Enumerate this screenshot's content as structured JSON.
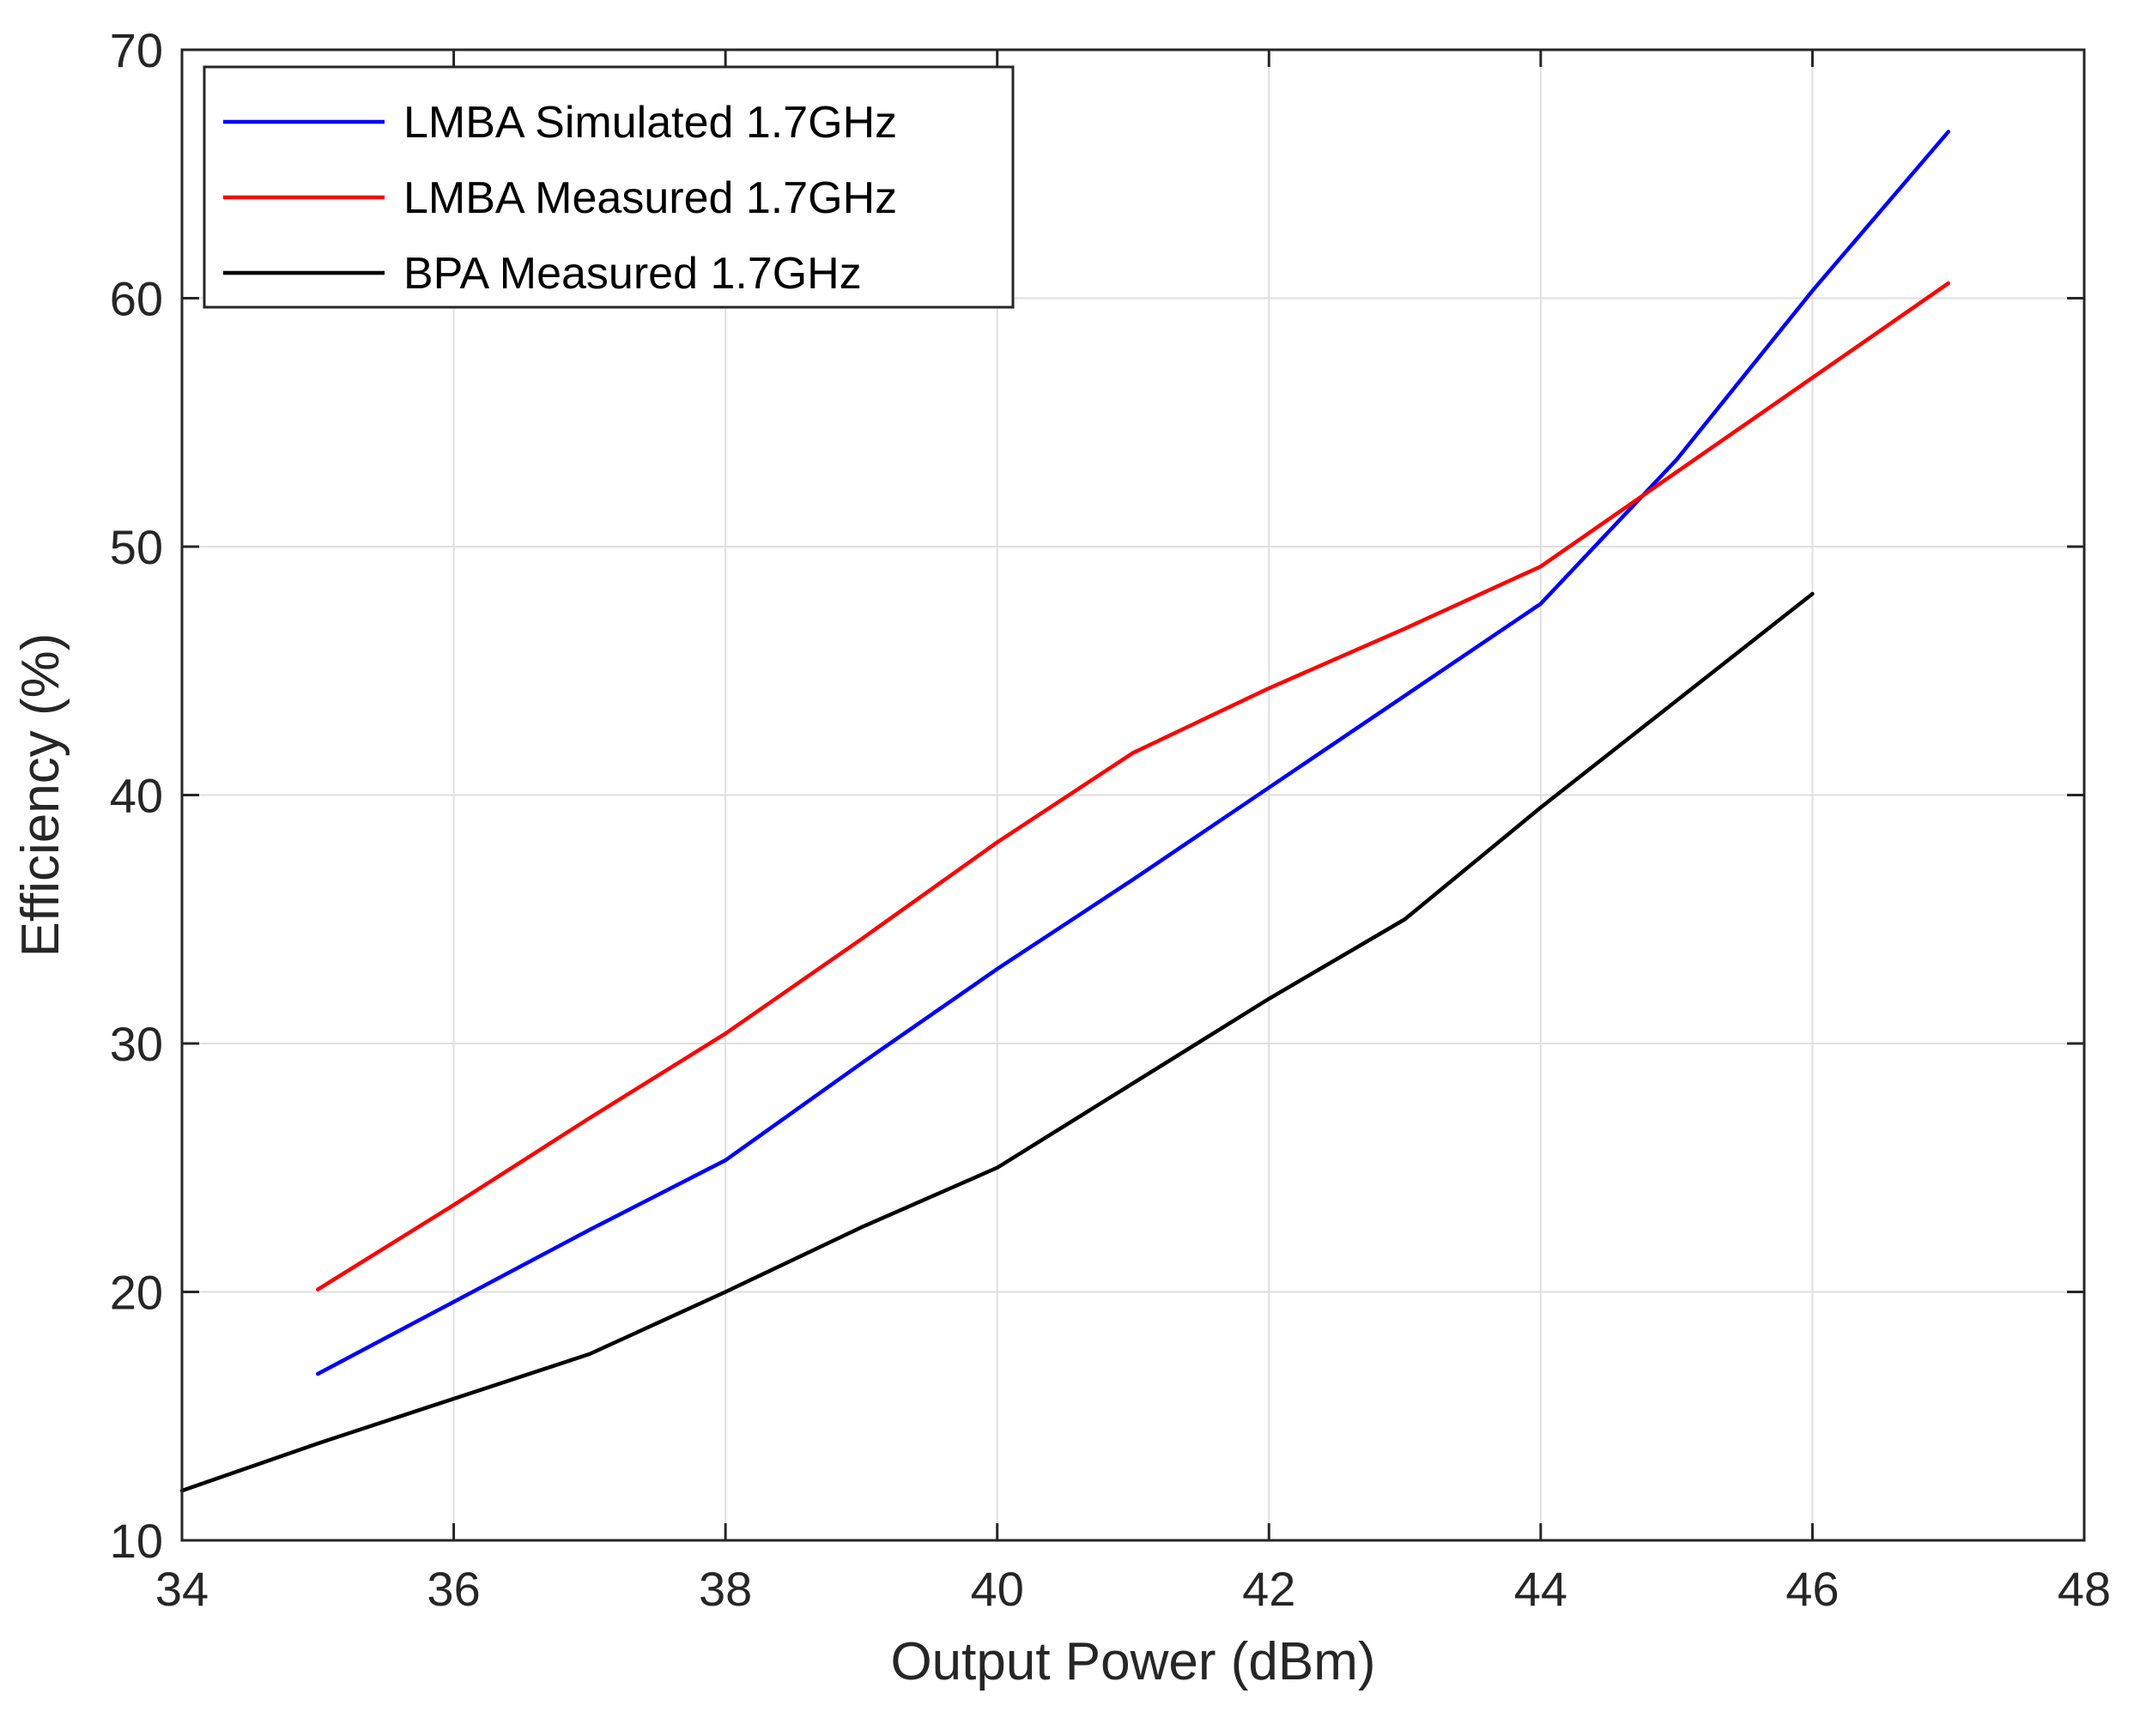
{
  "chart_data": {
    "type": "line",
    "xlabel": "Output Power (dBm)",
    "ylabel": "Efficiency (%)",
    "xlim": [
      34,
      48
    ],
    "ylim": [
      10,
      70
    ],
    "xticks": [
      34,
      36,
      38,
      40,
      42,
      44,
      46,
      48
    ],
    "yticks": [
      10,
      20,
      30,
      40,
      50,
      60,
      70
    ],
    "grid": true,
    "legend_position": "top-left",
    "series": [
      {
        "name": "LMBA Simulated 1.7GHz",
        "color": "#0000ff",
        "x": [
          35,
          36,
          37,
          38,
          39,
          40,
          41,
          42,
          43,
          44,
          45,
          46,
          47
        ],
        "y": [
          16.7,
          19.6,
          22.5,
          25.3,
          29.2,
          33.0,
          36.6,
          40.3,
          44.0,
          47.7,
          53.5,
          60.3,
          66.7
        ]
      },
      {
        "name": "LMBA Measured 1.7GHz",
        "color": "#ff0000",
        "x": [
          35,
          36,
          37,
          38,
          39,
          40,
          41,
          42,
          43,
          44,
          45,
          46,
          47
        ],
        "y": [
          20.1,
          23.5,
          27.0,
          30.4,
          34.2,
          38.1,
          41.7,
          44.3,
          46.7,
          49.2,
          53.0,
          56.8,
          60.6
        ]
      },
      {
        "name": "BPA Measured 1.7GHz",
        "color": "#000000",
        "x": [
          34,
          35,
          36,
          37,
          38,
          39,
          40,
          41,
          42,
          43,
          44,
          45,
          46
        ],
        "y": [
          12.0,
          13.9,
          15.7,
          17.5,
          20.0,
          22.6,
          25.0,
          28.4,
          31.8,
          35.0,
          39.5,
          43.8,
          48.1
        ]
      }
    ]
  }
}
